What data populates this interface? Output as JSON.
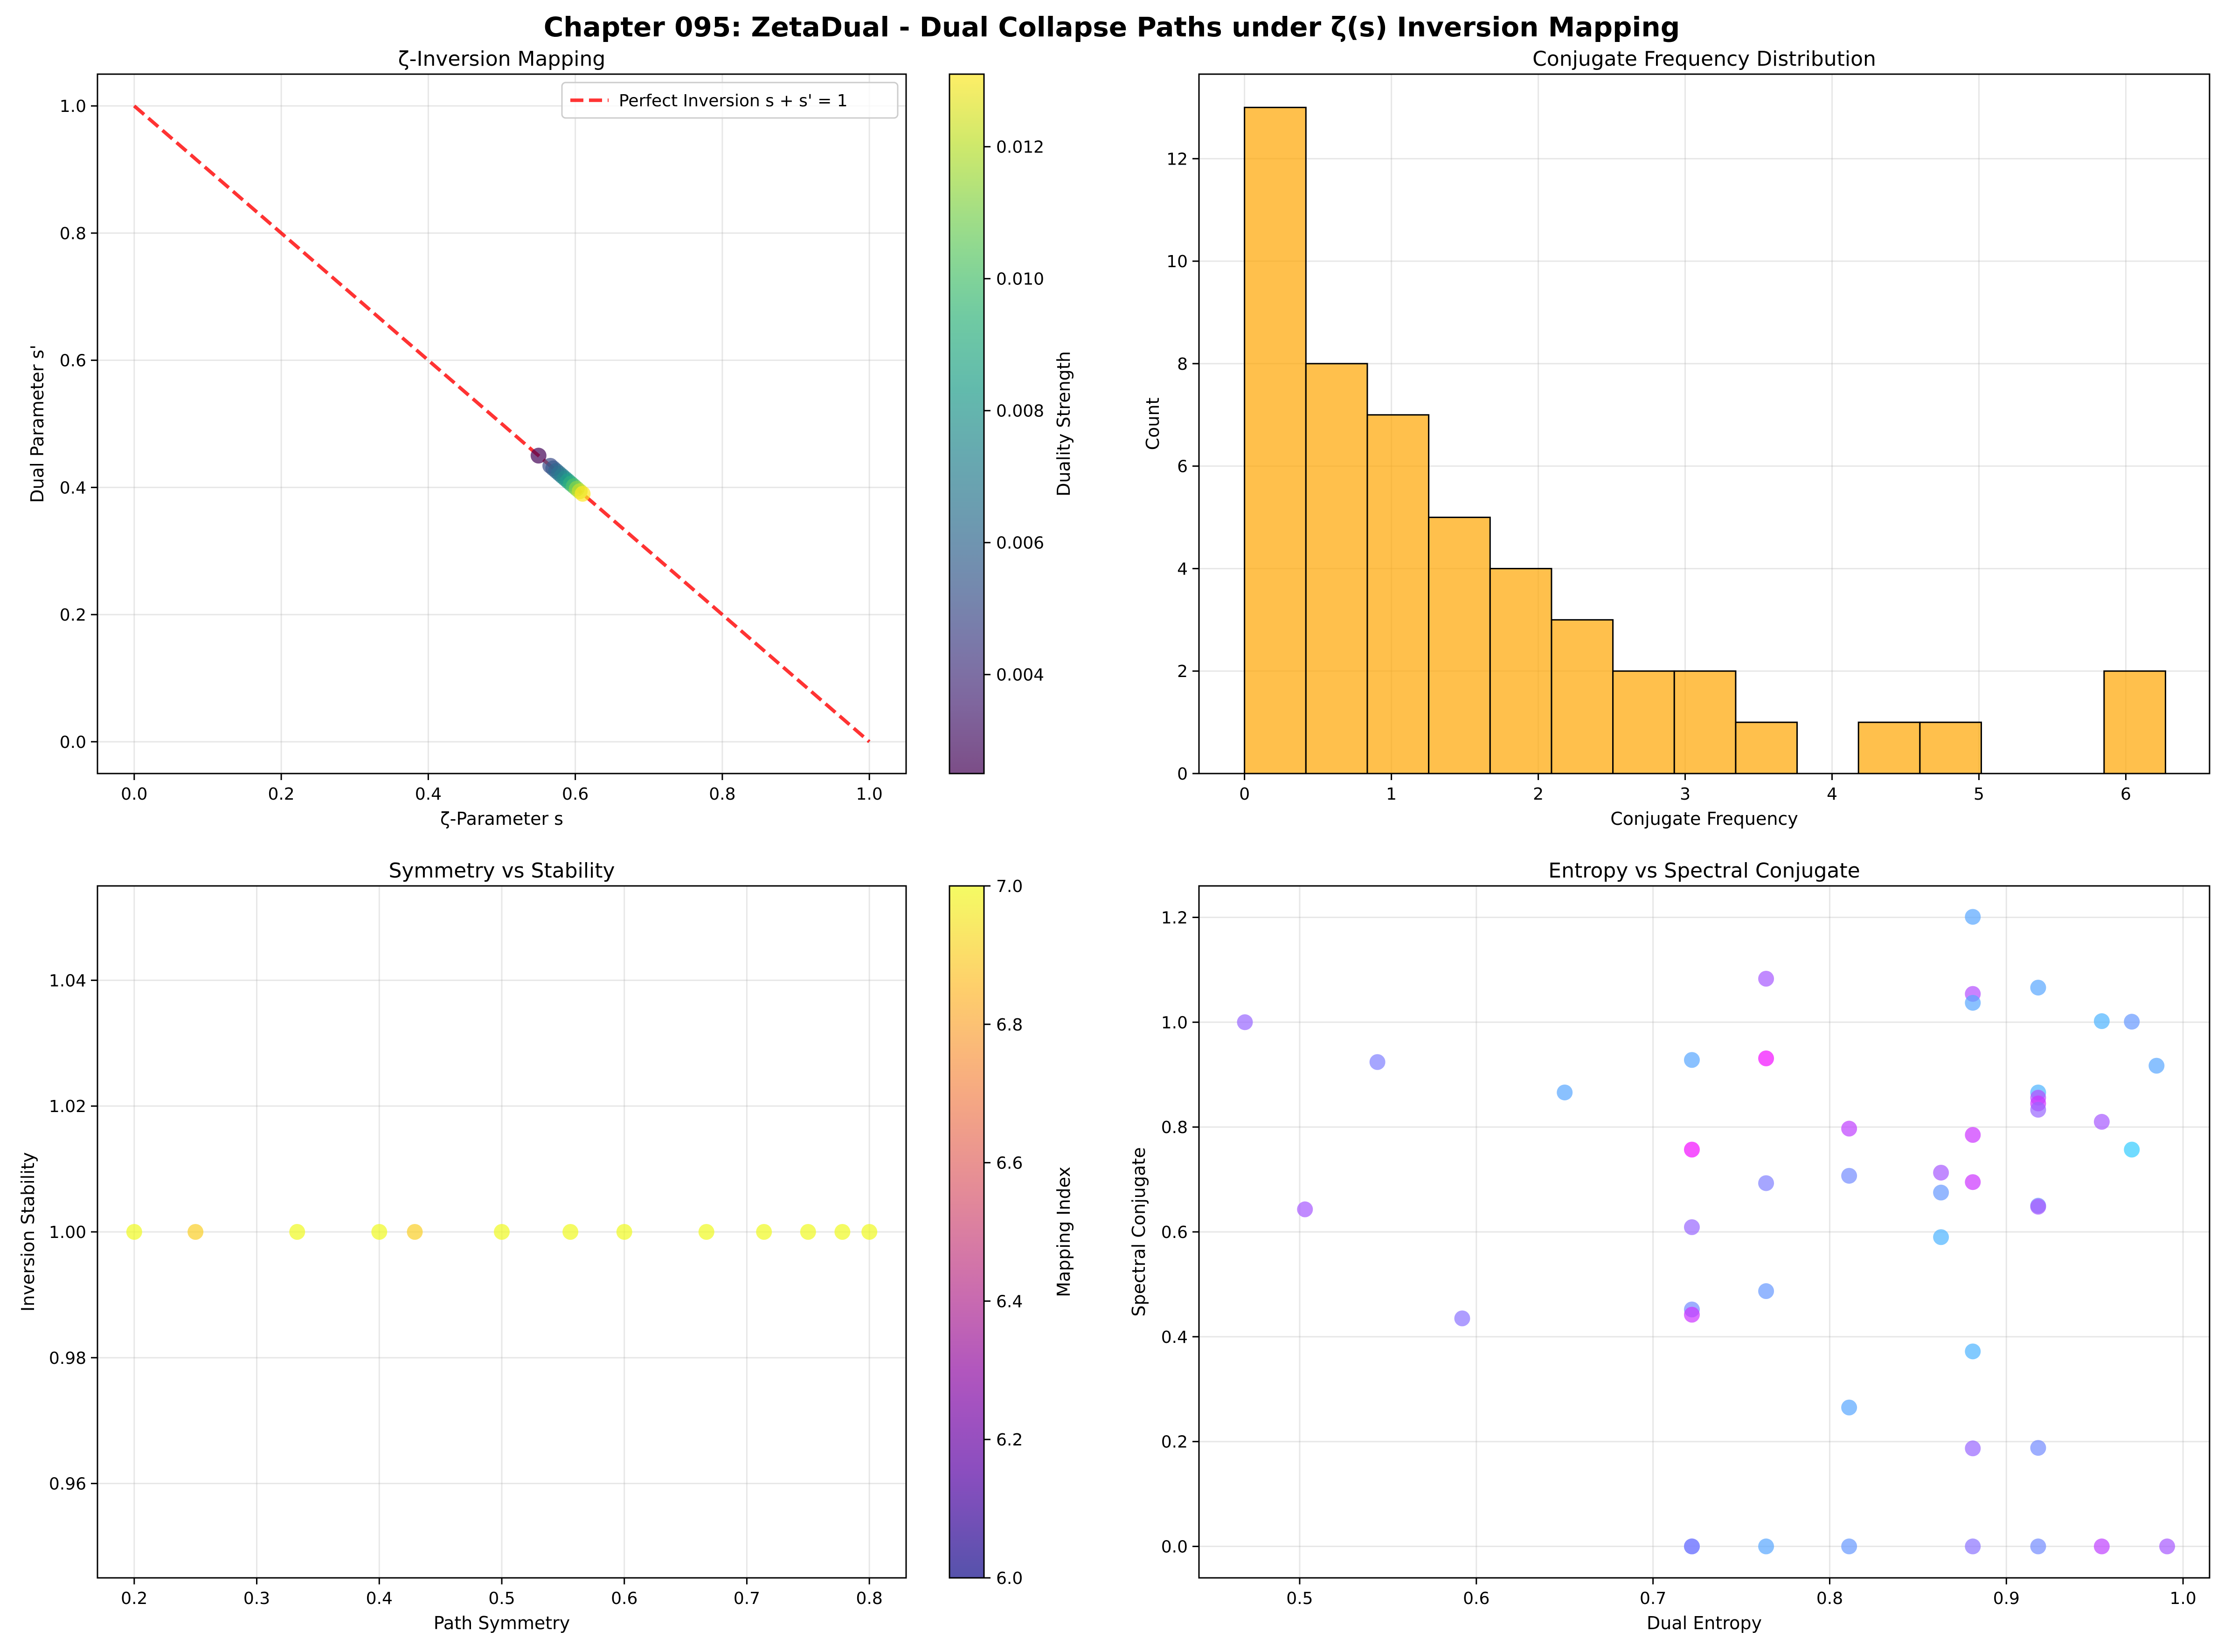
{
  "figure": {
    "title": "Chapter 095: ZetaDual - Dual Collapse Paths under ζ(s) Inversion Mapping"
  },
  "chart_data": [
    {
      "id": "inversion",
      "type": "scatter",
      "title": "ζ-Inversion Mapping",
      "xlabel": "ζ-Parameter s",
      "ylabel": "Dual Parameter s'",
      "xlim": [
        -0.05,
        1.05
      ],
      "ylim": [
        -0.05,
        1.05
      ],
      "xticks": [
        0.0,
        0.2,
        0.4,
        0.6,
        0.8,
        1.0
      ],
      "yticks": [
        0.0,
        0.2,
        0.4,
        0.6,
        0.8,
        1.0
      ],
      "tick_format": 1,
      "grid": true,
      "line": {
        "name": "Perfect Inversion s + s' = 1",
        "x": [
          0,
          1
        ],
        "y": [
          1,
          0
        ],
        "color": "#ff0000",
        "style": "dashed"
      },
      "legend": "upper right",
      "colormap": "viridis",
      "colorbar": {
        "label": "Duality Strength",
        "range": [
          0.0025,
          0.0131
        ],
        "ticks": [
          0.004,
          0.006,
          0.008,
          0.01,
          0.012
        ],
        "tick_format": 3
      },
      "points": [
        {
          "x": 0.55,
          "y": 0.45,
          "c": 0.0026
        },
        {
          "x": 0.566,
          "y": 0.434,
          "c": 0.005
        },
        {
          "x": 0.57,
          "y": 0.43,
          "c": 0.0055
        },
        {
          "x": 0.574,
          "y": 0.426,
          "c": 0.006
        },
        {
          "x": 0.578,
          "y": 0.422,
          "c": 0.0065
        },
        {
          "x": 0.582,
          "y": 0.418,
          "c": 0.007
        },
        {
          "x": 0.586,
          "y": 0.414,
          "c": 0.0076
        },
        {
          "x": 0.59,
          "y": 0.41,
          "c": 0.0084
        },
        {
          "x": 0.594,
          "y": 0.406,
          "c": 0.0092
        },
        {
          "x": 0.598,
          "y": 0.402,
          "c": 0.0101
        },
        {
          "x": 0.602,
          "y": 0.398,
          "c": 0.0112
        },
        {
          "x": 0.606,
          "y": 0.394,
          "c": 0.0122
        },
        {
          "x": 0.61,
          "y": 0.39,
          "c": 0.0131
        }
      ]
    },
    {
      "id": "freq",
      "type": "bar",
      "title": "Conjugate Frequency Distribution",
      "xlabel": "Conjugate Frequency",
      "ylabel": "Count",
      "xlim": [
        -0.31,
        6.57
      ],
      "ylim": [
        0,
        13.65
      ],
      "xticks": [
        0,
        1,
        2,
        3,
        4,
        5,
        6
      ],
      "yticks": [
        0,
        2,
        4,
        6,
        8,
        10,
        12
      ],
      "tick_format": 0,
      "grid": true,
      "bin_edges": [
        0.0,
        0.418,
        0.836,
        1.254,
        1.672,
        2.09,
        2.508,
        2.926,
        3.344,
        3.762,
        4.18,
        4.598,
        5.016,
        5.434,
        5.852,
        6.27
      ],
      "values": [
        13,
        8,
        7,
        5,
        4,
        3,
        2,
        2,
        1,
        0,
        1,
        1,
        0,
        0,
        2
      ],
      "color": "#ffa500"
    },
    {
      "id": "symmetry",
      "type": "scatter",
      "title": "Symmetry vs Stability",
      "xlabel": "Path Symmetry",
      "ylabel": "Inversion Stability",
      "xlim": [
        0.17,
        0.83
      ],
      "ylim": [
        0.945,
        1.055
      ],
      "xticks": [
        0.2,
        0.3,
        0.4,
        0.5,
        0.6,
        0.7,
        0.8
      ],
      "yticks": [
        0.96,
        0.98,
        1.0,
        1.02,
        1.04
      ],
      "tick_format": 2,
      "xtick_format": 1,
      "grid": true,
      "colormap": "plasma",
      "colorbar": {
        "label": "Mapping Index",
        "range": [
          6.0,
          7.0
        ],
        "ticks": [
          6.0,
          6.2,
          6.4,
          6.6,
          6.8,
          7.0
        ],
        "tick_format": 1
      },
      "points": [
        {
          "x": 0.2,
          "y": 1.0,
          "c": 7.0
        },
        {
          "x": 0.25,
          "y": 1.0,
          "c": 6.9
        },
        {
          "x": 0.333,
          "y": 1.0,
          "c": 7.0
        },
        {
          "x": 0.4,
          "y": 1.0,
          "c": 7.0
        },
        {
          "x": 0.429,
          "y": 1.0,
          "c": 6.9
        },
        {
          "x": 0.5,
          "y": 1.0,
          "c": 7.0
        },
        {
          "x": 0.556,
          "y": 1.0,
          "c": 7.0
        },
        {
          "x": 0.6,
          "y": 1.0,
          "c": 7.0
        },
        {
          "x": 0.667,
          "y": 1.0,
          "c": 7.0
        },
        {
          "x": 0.714,
          "y": 1.0,
          "c": 7.0
        },
        {
          "x": 0.75,
          "y": 1.0,
          "c": 7.0
        },
        {
          "x": 0.778,
          "y": 1.0,
          "c": 7.0
        },
        {
          "x": 0.8,
          "y": 1.0,
          "c": 7.0
        }
      ]
    },
    {
      "id": "entropy",
      "type": "scatter",
      "title": "Entropy vs Spectral Conjugate",
      "xlabel": "Dual Entropy",
      "ylabel": "Spectral Conjugate",
      "xlim": [
        0.443,
        1.015
      ],
      "ylim": [
        -0.06,
        1.26
      ],
      "xticks": [
        0.5,
        0.6,
        0.7,
        0.8,
        0.9,
        1.0
      ],
      "yticks": [
        0.0,
        0.2,
        0.4,
        0.6,
        0.8,
        1.0,
        1.2
      ],
      "tick_format": 1,
      "grid": true,
      "colormap": "cool",
      "points": [
        {
          "x": 0.469,
          "y": 1.0,
          "c": 0.6
        },
        {
          "x": 0.503,
          "y": 0.643,
          "c": 0.65
        },
        {
          "x": 0.544,
          "y": 0.924,
          "c": 0.5
        },
        {
          "x": 0.592,
          "y": 0.435,
          "c": 0.55
        },
        {
          "x": 0.65,
          "y": 0.866,
          "c": 0.35
        },
        {
          "x": 0.722,
          "y": 0.928,
          "c": 0.35
        },
        {
          "x": 0.722,
          "y": 0.757,
          "c": 0.95
        },
        {
          "x": 0.722,
          "y": 0.609,
          "c": 0.6
        },
        {
          "x": 0.722,
          "y": 0.452,
          "c": 0.45
        },
        {
          "x": 0.722,
          "y": 0.442,
          "c": 0.8
        },
        {
          "x": 0.722,
          "y": 0.0,
          "c": 0.45
        },
        {
          "x": 0.722,
          "y": 0.0,
          "c": 0.5
        },
        {
          "x": 0.764,
          "y": 1.083,
          "c": 0.65
        },
        {
          "x": 0.764,
          "y": 0.931,
          "c": 0.95
        },
        {
          "x": 0.764,
          "y": 0.693,
          "c": 0.5
        },
        {
          "x": 0.764,
          "y": 0.487,
          "c": 0.4
        },
        {
          "x": 0.764,
          "y": 0.0,
          "c": 0.35
        },
        {
          "x": 0.811,
          "y": 0.797,
          "c": 0.75
        },
        {
          "x": 0.811,
          "y": 0.707,
          "c": 0.45
        },
        {
          "x": 0.811,
          "y": 0.265,
          "c": 0.35
        },
        {
          "x": 0.811,
          "y": 0.0,
          "c": 0.4
        },
        {
          "x": 0.863,
          "y": 0.713,
          "c": 0.65
        },
        {
          "x": 0.863,
          "y": 0.675,
          "c": 0.4
        },
        {
          "x": 0.863,
          "y": 0.59,
          "c": 0.3
        },
        {
          "x": 0.881,
          "y": 1.201,
          "c": 0.35
        },
        {
          "x": 0.881,
          "y": 1.054,
          "c": 0.7
        },
        {
          "x": 0.881,
          "y": 1.037,
          "c": 0.35
        },
        {
          "x": 0.881,
          "y": 0.785,
          "c": 0.8
        },
        {
          "x": 0.881,
          "y": 0.695,
          "c": 0.8
        },
        {
          "x": 0.881,
          "y": 0.372,
          "c": 0.3
        },
        {
          "x": 0.881,
          "y": 0.187,
          "c": 0.6
        },
        {
          "x": 0.881,
          "y": 0.0,
          "c": 0.55
        },
        {
          "x": 0.918,
          "y": 1.066,
          "c": 0.35
        },
        {
          "x": 0.918,
          "y": 0.866,
          "c": 0.3
        },
        {
          "x": 0.918,
          "y": 0.856,
          "c": 0.7
        },
        {
          "x": 0.918,
          "y": 0.845,
          "c": 0.8
        },
        {
          "x": 0.918,
          "y": 0.833,
          "c": 0.6
        },
        {
          "x": 0.918,
          "y": 0.65,
          "c": 0.45
        },
        {
          "x": 0.918,
          "y": 0.648,
          "c": 0.65
        },
        {
          "x": 0.918,
          "y": 0.188,
          "c": 0.45
        },
        {
          "x": 0.918,
          "y": 0.0,
          "c": 0.45
        },
        {
          "x": 0.954,
          "y": 1.002,
          "c": 0.3
        },
        {
          "x": 0.954,
          "y": 0.81,
          "c": 0.65
        },
        {
          "x": 0.954,
          "y": 0.0,
          "c": 0.75
        },
        {
          "x": 0.971,
          "y": 1.001,
          "c": 0.4
        },
        {
          "x": 0.971,
          "y": 0.757,
          "c": 0.2
        },
        {
          "x": 0.985,
          "y": 0.917,
          "c": 0.35
        },
        {
          "x": 0.991,
          "y": 0.0,
          "c": 0.65
        }
      ]
    }
  ]
}
